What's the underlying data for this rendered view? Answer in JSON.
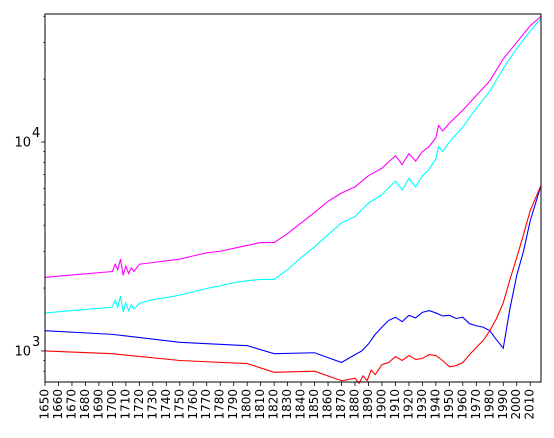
{
  "chart_data": {
    "type": "line",
    "title": "",
    "xlabel": "",
    "ylabel": "",
    "xlim": [
      1650,
      2018
    ],
    "ylim": [
      710,
      41000
    ],
    "yscale": "log",
    "grid": false,
    "legend": "none",
    "x_ticks": [
      1650,
      1660,
      1670,
      1680,
      1690,
      1700,
      1710,
      1720,
      1730,
      1740,
      1750,
      1760,
      1770,
      1780,
      1790,
      1800,
      1810,
      1820,
      1830,
      1840,
      1850,
      1860,
      1870,
      1880,
      1890,
      1900,
      1910,
      1920,
      1930,
      1940,
      1950,
      1960,
      1970,
      1980,
      1990,
      2000,
      2010
    ],
    "y_tick_labels": [
      {
        "value": 1000,
        "base": "10",
        "exp": "3"
      },
      {
        "value": 10000,
        "base": "10",
        "exp": "4"
      }
    ],
    "series": [
      {
        "color": "#ff00ff",
        "x": [
          1650,
          1700,
          1702,
          1704,
          1706,
          1708,
          1710,
          1712,
          1714,
          1716,
          1720,
          1730,
          1740,
          1750,
          1760,
          1770,
          1780,
          1790,
          1800,
          1810,
          1820,
          1830,
          1840,
          1850,
          1860,
          1870,
          1880,
          1890,
          1900,
          1910,
          1915,
          1920,
          1925,
          1930,
          1935,
          1940,
          1942,
          1945,
          1950,
          1960,
          1970,
          1980,
          1990,
          2000,
          2010,
          2018
        ],
        "y": [
          2250,
          2400,
          2600,
          2450,
          2750,
          2300,
          2550,
          2350,
          2500,
          2400,
          2600,
          2650,
          2700,
          2750,
          2850,
          2950,
          3000,
          3100,
          3200,
          3300,
          3300,
          3650,
          4100,
          4600,
          5200,
          5700,
          6100,
          6900,
          7500,
          8600,
          7800,
          8800,
          8100,
          9000,
          9500,
          10500,
          12000,
          11300,
          12300,
          14200,
          16700,
          19600,
          25000,
          30000,
          36000,
          40000
        ]
      },
      {
        "color": "#00ffff",
        "x": [
          1650,
          1700,
          1702,
          1704,
          1706,
          1708,
          1710,
          1712,
          1714,
          1716,
          1720,
          1730,
          1740,
          1750,
          1760,
          1770,
          1780,
          1790,
          1800,
          1810,
          1820,
          1830,
          1840,
          1850,
          1860,
          1870,
          1880,
          1890,
          1900,
          1910,
          1915,
          1920,
          1925,
          1930,
          1935,
          1940,
          1942,
          1945,
          1950,
          1960,
          1970,
          1980,
          1990,
          2000,
          2010,
          2018
        ],
        "y": [
          1520,
          1620,
          1750,
          1620,
          1830,
          1540,
          1700,
          1560,
          1660,
          1590,
          1690,
          1760,
          1800,
          1850,
          1920,
          1990,
          2050,
          2120,
          2170,
          2200,
          2200,
          2450,
          2800,
          3150,
          3600,
          4100,
          4400,
          5100,
          5600,
          6500,
          5900,
          6700,
          6100,
          6900,
          7400,
          8300,
          9500,
          9000,
          10000,
          11800,
          14500,
          17500,
          22500,
          28000,
          34000,
          39000
        ]
      },
      {
        "color": "#0000ff",
        "x": [
          1650,
          1700,
          1750,
          1800,
          1820,
          1850,
          1870,
          1880,
          1885,
          1890,
          1895,
          1900,
          1905,
          1910,
          1915,
          1920,
          1925,
          1930,
          1935,
          1940,
          1945,
          1950,
          1955,
          1960,
          1965,
          1970,
          1975,
          1980,
          1985,
          1990,
          1995,
          2000,
          2005,
          2010,
          2018
        ],
        "y": [
          1250,
          1200,
          1100,
          1060,
          970,
          980,
          880,
          960,
          1000,
          1080,
          1200,
          1300,
          1400,
          1450,
          1380,
          1480,
          1440,
          1530,
          1560,
          1520,
          1470,
          1480,
          1430,
          1450,
          1350,
          1320,
          1300,
          1250,
          1130,
          1030,
          1600,
          2300,
          3000,
          4200,
          6200
        ]
      },
      {
        "color": "#ff0000",
        "x": [
          1650,
          1700,
          1750,
          1800,
          1820,
          1850,
          1870,
          1880,
          1883,
          1886,
          1889,
          1892,
          1895,
          1900,
          1905,
          1910,
          1915,
          1920,
          1925,
          1930,
          1935,
          1940,
          1945,
          1950,
          1955,
          1960,
          1965,
          1970,
          1975,
          1980,
          1985,
          1990,
          1995,
          2000,
          2005,
          2010,
          2018
        ],
        "y": [
          1000,
          970,
          900,
          870,
          790,
          800,
          720,
          740,
          700,
          760,
          720,
          810,
          770,
          860,
          880,
          940,
          900,
          950,
          910,
          920,
          960,
          950,
          900,
          840,
          850,
          880,
          960,
          1040,
          1120,
          1250,
          1430,
          1700,
          2200,
          2800,
          3600,
          4700,
          6200
        ]
      }
    ]
  }
}
